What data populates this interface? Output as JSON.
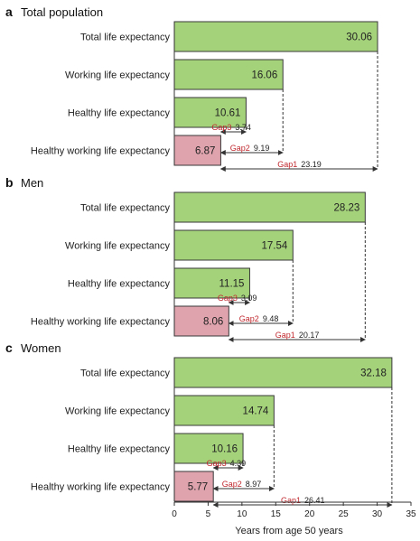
{
  "chart_data": {
    "type": "bar",
    "orientation": "horizontal",
    "xlabel": "Years from age 50 years",
    "xlim": [
      0,
      35
    ],
    "xticks": [
      0,
      5,
      10,
      15,
      20,
      25,
      30,
      35
    ],
    "colors": {
      "bar": "#a4d27a",
      "highlight_bar": "#dea3ad",
      "bar_edge": "#3a3a3a",
      "gap_label": "#c0282e"
    },
    "panels": [
      {
        "letter": "a",
        "title": "Total population",
        "categories": [
          "Total life expectancy",
          "Working life expectancy",
          "Healthy life expectancy",
          "Healthy working life expectancy"
        ],
        "values": [
          30.06,
          16.06,
          10.61,
          6.87
        ],
        "value_labels": [
          "30.06",
          "16.06",
          "10.61",
          "6.87"
        ],
        "gaps": [
          {
            "name": "Gap3",
            "value": 3.74,
            "from": 6.87,
            "to": 10.61
          },
          {
            "name": "Gap2",
            "value": 9.19,
            "from": 6.87,
            "to": 16.06
          },
          {
            "name": "Gap1",
            "value": 23.19,
            "from": 6.87,
            "to": 30.06
          }
        ]
      },
      {
        "letter": "b",
        "title": "Men",
        "categories": [
          "Total life expectancy",
          "Working life expectancy",
          "Healthy life expectancy",
          "Healthy working life expectancy"
        ],
        "values": [
          28.23,
          17.54,
          11.15,
          8.06
        ],
        "value_labels": [
          "28.23",
          "17.54",
          "11.15",
          "8.06"
        ],
        "gaps": [
          {
            "name": "Gap3",
            "value": 3.09,
            "from": 8.06,
            "to": 11.15
          },
          {
            "name": "Gap2",
            "value": 9.48,
            "from": 8.06,
            "to": 17.54
          },
          {
            "name": "Gap1",
            "value": 20.17,
            "from": 8.06,
            "to": 28.23
          }
        ]
      },
      {
        "letter": "c",
        "title": "Women",
        "categories": [
          "Total life expectancy",
          "Working life expectancy",
          "Healthy life expectancy",
          "Healthy working life expectancy"
        ],
        "values": [
          32.18,
          14.74,
          10.16,
          5.77
        ],
        "value_labels": [
          "32.18",
          "14.74",
          "10.16",
          "5.77"
        ],
        "gaps": [
          {
            "name": "Gap3",
            "value": 4.39,
            "from": 5.77,
            "to": 10.16
          },
          {
            "name": "Gap2",
            "value": 8.97,
            "from": 5.77,
            "to": 14.74
          },
          {
            "name": "Gap1",
            "value": 26.41,
            "from": 5.77,
            "to": 32.18
          }
        ]
      }
    ]
  }
}
